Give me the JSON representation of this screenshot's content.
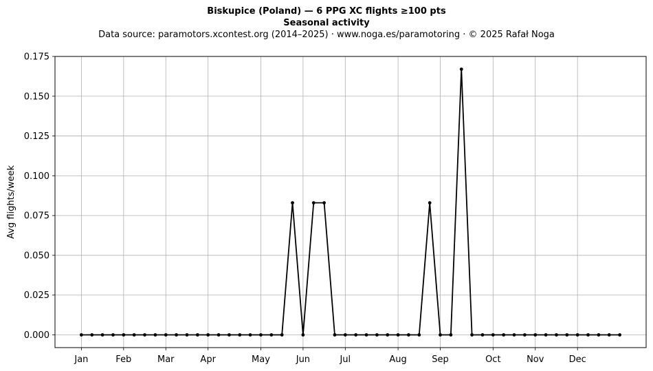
{
  "chart_data": {
    "type": "line",
    "title": "Biskupice (Poland)  —  6 PPG XC flights ≥100 pts",
    "subtitle": "Seasonal activity",
    "source": "Data source: paramotors.xcontest.org (2014–2025)  ·  www.noga.es/paramotoring  ·  © 2025 Rafał Noga",
    "ylabel": "Avg flights/week",
    "xlabel": "",
    "ylim": [
      -0.008,
      0.175
    ],
    "xlim": [
      -2.5,
      53.5
    ],
    "grid": true,
    "line_color": "#000000",
    "month_ticks": [
      {
        "label": "Jan",
        "x": 0
      },
      {
        "label": "Feb",
        "x": 4
      },
      {
        "label": "Mar",
        "x": 8
      },
      {
        "label": "Apr",
        "x": 12
      },
      {
        "label": "May",
        "x": 17
      },
      {
        "label": "Jun",
        "x": 21
      },
      {
        "label": "Jul",
        "x": 25
      },
      {
        "label": "Aug",
        "x": 30
      },
      {
        "label": "Sep",
        "x": 34
      },
      {
        "label": "Oct",
        "x": 39
      },
      {
        "label": "Nov",
        "x": 43
      },
      {
        "label": "Dec",
        "x": 47
      }
    ],
    "y_ticks": [
      "0.000",
      "0.025",
      "0.050",
      "0.075",
      "0.100",
      "0.125",
      "0.150",
      "0.175"
    ],
    "series": [
      {
        "x": [
          0,
          1,
          2,
          3,
          4,
          5,
          6,
          7,
          8,
          9,
          10,
          11,
          12,
          13,
          14,
          15,
          16,
          17,
          18,
          19,
          20,
          21,
          22,
          23,
          24,
          25,
          26,
          27,
          28,
          29,
          30,
          31,
          32,
          33,
          34,
          35,
          36,
          37,
          38,
          39,
          40,
          41,
          42,
          43,
          44,
          45,
          46,
          47,
          48,
          49,
          50,
          51
        ],
        "values": [
          0,
          0,
          0,
          0,
          0,
          0,
          0,
          0,
          0,
          0,
          0,
          0,
          0,
          0,
          0,
          0,
          0,
          0,
          0,
          0,
          0.083,
          0,
          0.083,
          0.083,
          0,
          0,
          0,
          0,
          0,
          0,
          0,
          0,
          0,
          0.083,
          0,
          0,
          0.167,
          0,
          0,
          0,
          0,
          0,
          0,
          0,
          0,
          0,
          0,
          0,
          0,
          0,
          0,
          0
        ]
      }
    ]
  }
}
